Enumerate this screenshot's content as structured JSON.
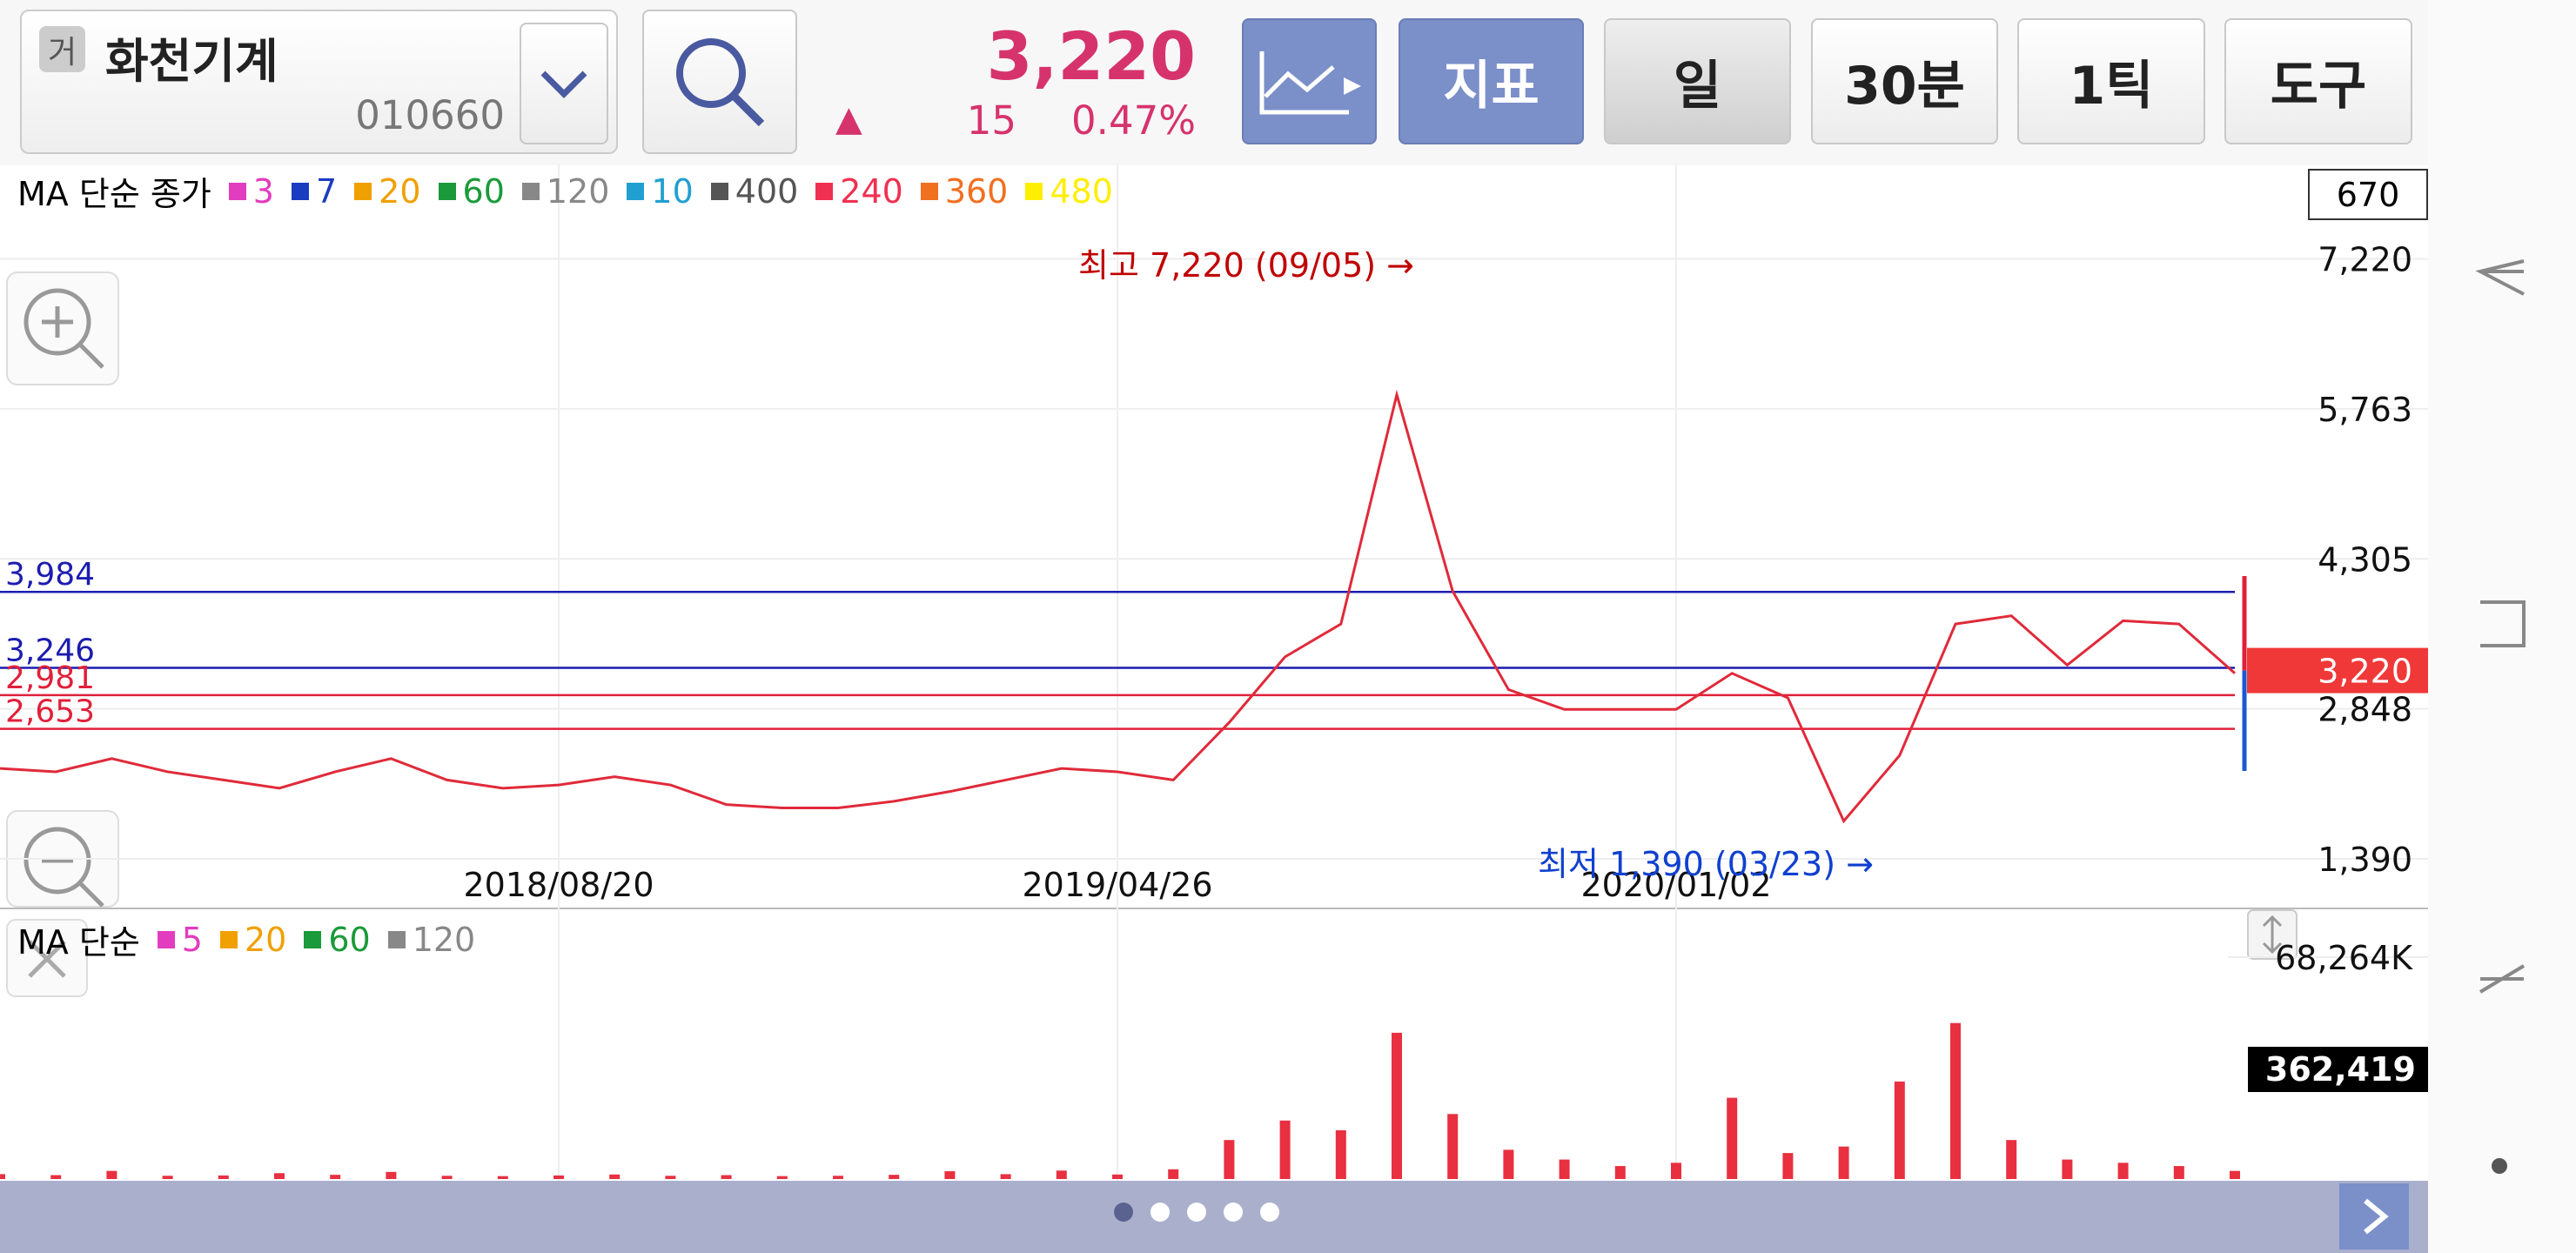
{
  "header": {
    "badge": "거",
    "name": "화천기계",
    "code": "010660",
    "price": "3,220",
    "change_arrow": "▲",
    "change": "15",
    "change_pct": "0.47%",
    "buttons": [
      "지표",
      "일",
      "30분",
      "1틱",
      "도구"
    ]
  },
  "chart_data": [
    {
      "type": "line",
      "legend_title": "MA 단순 종가",
      "ma_legend": [
        {
          "name": "3",
          "color": "#e23cbf"
        },
        {
          "name": "7",
          "color": "#1a3cc0"
        },
        {
          "name": "20",
          "color": "#f0a000"
        },
        {
          "name": "60",
          "color": "#1a9a3a"
        },
        {
          "name": "120",
          "color": "#888888"
        },
        {
          "name": "10",
          "color": "#20a0d0"
        },
        {
          "name": "400",
          "color": "#555555"
        },
        {
          "name": "240",
          "color": "#f03050"
        },
        {
          "name": "360",
          "color": "#f07020"
        },
        {
          "name": "480",
          "color": "#ffee00"
        }
      ],
      "categories": [
        null,
        null,
        null,
        null,
        null,
        null,
        null,
        null,
        null,
        null,
        "2018/08/20",
        null,
        null,
        null,
        null,
        null,
        null,
        null,
        null,
        null,
        "2019/04/26",
        null,
        null,
        null,
        null,
        null,
        null,
        null,
        null,
        null,
        "2020/01/02",
        null,
        null,
        null,
        null,
        null,
        null,
        null,
        null,
        null,
        null
      ],
      "values": [
        2268,
        2236,
        2364,
        2236,
        2156,
        2076,
        2236,
        2364,
        2156,
        2076,
        2108,
        2188,
        2108,
        1917,
        1885,
        1885,
        1949,
        2044,
        2156,
        2268,
        2236,
        2156,
        2715,
        3353,
        3672,
        5900,
        3991,
        3034,
        2842,
        2842,
        2842,
        3193,
        2954,
        1757,
        2395,
        3672,
        3752,
        3273,
        3704,
        3672,
        3193
      ],
      "color": "#e02a3a",
      "ylim": [
        908,
        8138
      ],
      "yticks": [
        {
          "value": 1390,
          "label": "1,390"
        },
        {
          "value": 2848,
          "label": "2,848"
        },
        {
          "value": 4305,
          "label": "4,305"
        },
        {
          "value": 5763,
          "label": "5,763"
        },
        {
          "value": 7220,
          "label": "7,220"
        }
      ],
      "hlines": [
        {
          "value": 3984,
          "label": "3,984",
          "color": "#1c1cb0"
        },
        {
          "value": 3246,
          "label": "3,246",
          "color": "#1c1cb0"
        },
        {
          "value": 2981,
          "label": "2,981",
          "color": "#e0203a"
        },
        {
          "value": 2653,
          "label": "2,653",
          "color": "#e0203a"
        }
      ],
      "current_price": {
        "value": 3220,
        "label": "3,220"
      },
      "top_label": "670",
      "annotations": [
        {
          "text": "최고 7,220 (09/05) →",
          "color": "#c00000"
        },
        {
          "text": "최저 1,390 (03/23) →",
          "color": "#1040d0"
        }
      ]
    },
    {
      "type": "bar",
      "legend_title": "MA 단순",
      "ma_legend": [
        {
          "name": "5",
          "color": "#e23cbf"
        },
        {
          "name": "20",
          "color": "#f0a000"
        },
        {
          "name": "60",
          "color": "#1a9a3a"
        },
        {
          "name": "120",
          "color": "#888888"
        }
      ],
      "values": [
        1500,
        1200,
        2500,
        1000,
        1100,
        1800,
        1300,
        2200,
        1000,
        900,
        1100,
        1400,
        1000,
        1200,
        900,
        1000,
        1300,
        2400,
        1500,
        2600,
        1400,
        3000,
        12000,
        18000,
        15000,
        45000,
        20000,
        9000,
        6000,
        4000,
        5000,
        25000,
        8000,
        10000,
        30000,
        48000,
        12000,
        6000,
        5000,
        4000,
        2500
      ],
      "color": "#e83040",
      "ylim": [
        0,
        68264
      ],
      "yticks": [
        {
          "value": 68264,
          "label": "68,264K"
        }
      ],
      "current_volume": "362,419"
    }
  ]
}
